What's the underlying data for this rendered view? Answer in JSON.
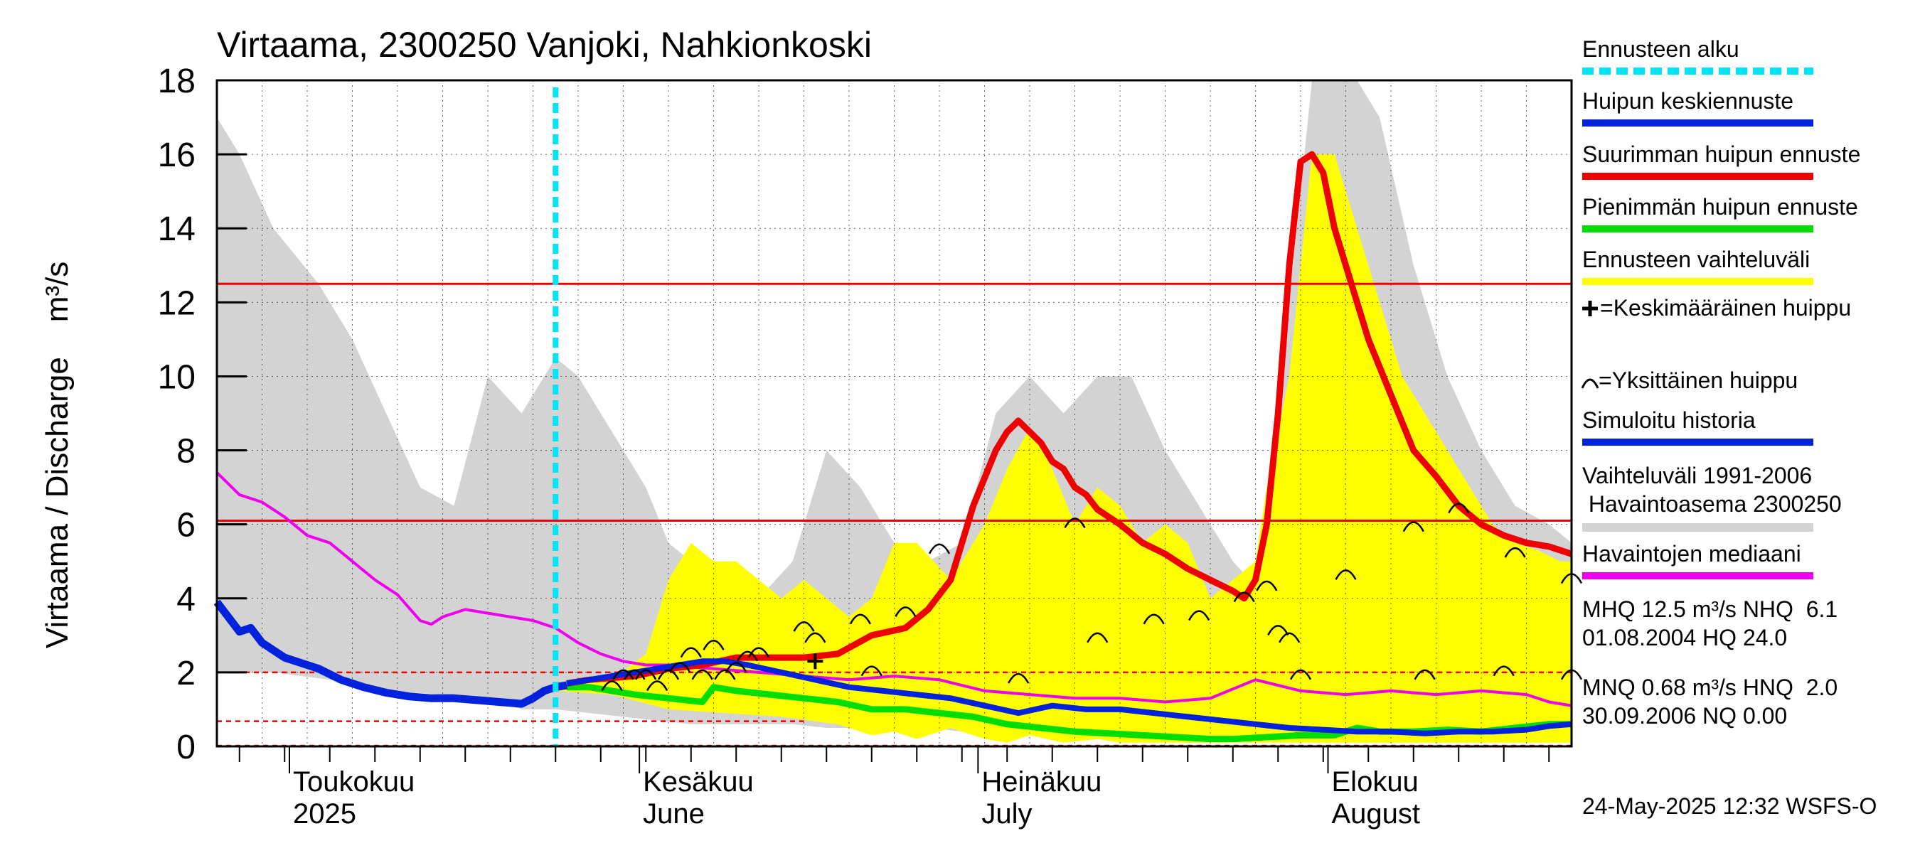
{
  "chart_data": {
    "type": "line",
    "title": "Virtaama, 2300250 Vanjoki, Nahkionkoski",
    "ylabel": "Virtaama / Discharge    m³/s",
    "ylim": [
      0,
      18
    ],
    "y_ticks": [
      "0",
      "2",
      "4",
      "6",
      "8",
      "10",
      "12",
      "14",
      "16",
      "18"
    ],
    "x_range_days": [
      0,
      120
    ],
    "x_month_labels": [
      {
        "fi": "Toukokuu",
        "en": "2025",
        "day": 8
      },
      {
        "fi": "Kesäkuu",
        "en": "June",
        "day": 39
      },
      {
        "fi": "Heinäkuu",
        "en": "July",
        "day": 69
      },
      {
        "fi": "Elokuu",
        "en": "August",
        "day": 100
      }
    ],
    "forecast_start_day": 30,
    "reference_lines": {
      "MHQ": 12.5,
      "NHQ": 6.1,
      "MNQ": 0.68,
      "HNQ": 2.0,
      "NQ": 0.0
    },
    "legend": [
      {
        "label": "Ennusteen alku",
        "color": "#00e5f5",
        "style": "dashed"
      },
      {
        "label": "Huipun keskiennuste",
        "color": "#0022dd",
        "style": "solid"
      },
      {
        "label": "Suurimman huipun ennuste",
        "color": "#ee0000",
        "style": "solid"
      },
      {
        "label": "Pienimmän huipun ennuste",
        "color": "#00dd00",
        "style": "solid"
      },
      {
        "label": "Ennusteen vaihteluväli",
        "color": "#ffff00",
        "style": "solid"
      },
      {
        "label": "=Keskimääräinen huippu",
        "color": "#000000",
        "style": "plus"
      },
      {
        "label": "=Yksittäinen huippu",
        "color": "#000000",
        "style": "arc"
      },
      {
        "label": "Simuloitu historia",
        "color": "#0022dd",
        "style": "solid"
      },
      {
        "label": "Vaihteluväli 1991-2006\n Havaintoasema 2300250",
        "color": "#d3d3d3",
        "style": "solid"
      },
      {
        "label": "Havaintojen mediaani",
        "color": "#ee00ee",
        "style": "solid"
      }
    ],
    "stats_text": {
      "line1": "MHQ 12.5 m³/s NHQ  6.1",
      "line2": "01.08.2004 HQ 24.0",
      "line3": "MNQ 0.68 m³/s HNQ  2.0",
      "line4": "30.09.2006 NQ 0.00"
    },
    "footer": "24-May-2025 12:32 WSFS-O",
    "colors": {
      "gray_band": "#d3d3d3",
      "yellow_band": "#ffff00",
      "red": "#ee0000",
      "green": "#00dd00",
      "blue": "#0022dd",
      "magenta": "#ee00ee",
      "cyan": "#00e5f5"
    },
    "series": {
      "history_band_upper": {
        "x": [
          0,
          2,
          5,
          9,
          12,
          15,
          18,
          21,
          24,
          27,
          30,
          32,
          35,
          38,
          40,
          42,
          45,
          48,
          51,
          54,
          57,
          60,
          63,
          66,
          69,
          72,
          75,
          78,
          81,
          84,
          87,
          90,
          93,
          95,
          97,
          99,
          101,
          103,
          106,
          109,
          112,
          115,
          118,
          120
        ],
        "y": [
          17.0,
          16.0,
          14.0,
          12.5,
          11.0,
          9.0,
          7.0,
          6.5,
          10.0,
          9.0,
          10.5,
          10.0,
          8.5,
          7.0,
          5.5,
          5.0,
          4.5,
          4.0,
          5.0,
          8.0,
          7.0,
          5.5,
          5.0,
          5.5,
          9.0,
          10.0,
          9.0,
          10.0,
          10.0,
          8.0,
          6.5,
          5.0,
          4.0,
          12.0,
          18.0,
          18.0,
          18.0,
          17.0,
          13.0,
          10.0,
          8.0,
          6.5,
          6.0,
          5.5
        ]
      },
      "history_band_lower": {
        "x": [
          0,
          5,
          10,
          15,
          20,
          24,
          27,
          30,
          33,
          36,
          39,
          42,
          45,
          48,
          51,
          54,
          57,
          60,
          63,
          66,
          69,
          72,
          75,
          78,
          81,
          84,
          87,
          90,
          93,
          96,
          99,
          102,
          105,
          108,
          111,
          114,
          117,
          120
        ],
        "y": [
          2.0,
          2.0,
          1.8,
          1.5,
          1.4,
          1.3,
          1.0,
          1.0,
          0.9,
          0.8,
          0.7,
          0.6,
          0.6,
          0.6,
          0.6,
          0.5,
          0.5,
          0.5,
          0.5,
          0.4,
          0.4,
          0.3,
          0.3,
          0.3,
          0.3,
          0.3,
          0.3,
          0.3,
          0.3,
          0.3,
          0.3,
          0.3,
          0.3,
          0.3,
          0.3,
          0.3,
          0.3,
          0.3
        ]
      },
      "forecast_band_upper": {
        "x": [
          30,
          32,
          35,
          38,
          40,
          42,
          44,
          46,
          48,
          50,
          52,
          54,
          56,
          58,
          60,
          62,
          65,
          68,
          70,
          72,
          74,
          76,
          78,
          80,
          82,
          84,
          86,
          88,
          90,
          92,
          93,
          95,
          97,
          99,
          101,
          103,
          105,
          107,
          109,
          111,
          113,
          115,
          117,
          119,
          120
        ],
        "y": [
          1.6,
          1.7,
          1.8,
          2.5,
          4.5,
          5.5,
          5.0,
          5.0,
          4.5,
          4.0,
          4.5,
          4.0,
          3.5,
          4.0,
          5.5,
          5.5,
          4.5,
          6.0,
          7.5,
          8.6,
          7.5,
          6.0,
          7.0,
          6.5,
          5.5,
          6.0,
          5.5,
          4.0,
          4.5,
          5.0,
          7.0,
          10.0,
          16.0,
          16.0,
          14.0,
          12.0,
          10.0,
          9.0,
          8.0,
          7.0,
          6.0,
          5.5,
          5.3,
          5.0,
          5.0
        ]
      },
      "forecast_band_lower": {
        "x": [
          30,
          35,
          40,
          45,
          50,
          55,
          58,
          60,
          62,
          65,
          68,
          70,
          72,
          75,
          78,
          80,
          82,
          85,
          88,
          91,
          94,
          97,
          100,
          103,
          106,
          109,
          112,
          115,
          118,
          120
        ],
        "y": [
          1.5,
          1.4,
          1.0,
          0.9,
          0.8,
          0.6,
          0.3,
          0.4,
          0.2,
          0.5,
          0.2,
          0.1,
          0.3,
          0.1,
          0.2,
          0.1,
          0.1,
          0.1,
          0.1,
          0.1,
          0.1,
          0.1,
          0.1,
          0.1,
          0.1,
          0.1,
          0.1,
          0.1,
          0.1,
          0.1
        ]
      },
      "max_peak_forecast": {
        "x": [
          31,
          33,
          35,
          37,
          40,
          43,
          46,
          49,
          52,
          55,
          58,
          61,
          63,
          65,
          67,
          69,
          70,
          71,
          72,
          73,
          74,
          75,
          76,
          77,
          78,
          80,
          82,
          84,
          86,
          88,
          90,
          91,
          92,
          93,
          94,
          95,
          96,
          97,
          98,
          99,
          100,
          102,
          104,
          106,
          108,
          110,
          112,
          114,
          116,
          118,
          120
        ],
        "y": [
          1.7,
          1.8,
          1.85,
          1.9,
          2.1,
          2.2,
          2.4,
          2.4,
          2.4,
          2.5,
          3.0,
          3.2,
          3.7,
          4.5,
          6.5,
          8.0,
          8.5,
          8.8,
          8.5,
          8.2,
          7.7,
          7.5,
          7.0,
          6.8,
          6.4,
          6.0,
          5.5,
          5.2,
          4.8,
          4.5,
          4.2,
          4.0,
          4.5,
          6.0,
          9.0,
          13.0,
          15.8,
          16.0,
          15.5,
          14.0,
          13.0,
          11.0,
          9.5,
          8.0,
          7.3,
          6.5,
          6.0,
          5.7,
          5.5,
          5.4,
          5.2
        ]
      },
      "min_peak_forecast": {
        "x": [
          31,
          33,
          35,
          37,
          40,
          43,
          44,
          46,
          49,
          52,
          55,
          58,
          61,
          64,
          67,
          70,
          73,
          76,
          79,
          82,
          85,
          88,
          90,
          93,
          96,
          99,
          101,
          103,
          106,
          109,
          112,
          115,
          118,
          120
        ],
        "y": [
          1.6,
          1.6,
          1.5,
          1.4,
          1.3,
          1.2,
          1.6,
          1.5,
          1.4,
          1.3,
          1.2,
          1.0,
          1.0,
          0.9,
          0.8,
          0.6,
          0.5,
          0.4,
          0.35,
          0.3,
          0.25,
          0.2,
          0.2,
          0.25,
          0.3,
          0.3,
          0.5,
          0.4,
          0.4,
          0.45,
          0.4,
          0.5,
          0.6,
          0.6
        ]
      },
      "mean_peak_forecast": {
        "x": [
          31,
          33,
          35,
          37,
          39,
          41,
          43,
          45,
          47,
          50,
          53,
          56,
          59,
          62,
          65,
          68,
          71,
          74,
          77,
          80,
          83,
          86,
          89,
          92,
          95,
          98,
          101,
          104,
          107,
          110,
          113,
          116,
          118,
          120
        ],
        "y": [
          1.7,
          1.8,
          1.9,
          2.0,
          2.1,
          2.2,
          2.3,
          2.3,
          2.2,
          2.0,
          1.8,
          1.6,
          1.5,
          1.4,
          1.3,
          1.1,
          0.9,
          1.1,
          1.0,
          1.0,
          0.9,
          0.8,
          0.7,
          0.6,
          0.5,
          0.45,
          0.4,
          0.4,
          0.35,
          0.4,
          0.4,
          0.45,
          0.55,
          0.6
        ]
      },
      "simulated_history": {
        "x": [
          0,
          1,
          2,
          3,
          4,
          5,
          6,
          7,
          9,
          11,
          13,
          15,
          17,
          19,
          21,
          23,
          25,
          27,
          28,
          29,
          30,
          31
        ],
        "y": [
          3.9,
          3.5,
          3.1,
          3.2,
          2.8,
          2.6,
          2.4,
          2.3,
          2.1,
          1.8,
          1.6,
          1.45,
          1.35,
          1.3,
          1.3,
          1.25,
          1.2,
          1.15,
          1.3,
          1.5,
          1.6,
          1.65
        ]
      },
      "observed_median": {
        "x": [
          0,
          2,
          4,
          6,
          8,
          10,
          12,
          14,
          16,
          18,
          19,
          20,
          22,
          24,
          26,
          28,
          30,
          32,
          34,
          36,
          38,
          40,
          44,
          48,
          52,
          56,
          60,
          64,
          68,
          72,
          76,
          80,
          84,
          88,
          92,
          96,
          100,
          104,
          108,
          112,
          116,
          118,
          120
        ],
        "y": [
          7.4,
          6.8,
          6.6,
          6.2,
          5.7,
          5.5,
          5.0,
          4.5,
          4.1,
          3.4,
          3.3,
          3.5,
          3.7,
          3.6,
          3.5,
          3.4,
          3.2,
          2.8,
          2.5,
          2.3,
          2.2,
          2.2,
          2.1,
          2.0,
          1.9,
          1.8,
          1.9,
          1.8,
          1.5,
          1.4,
          1.3,
          1.3,
          1.2,
          1.3,
          1.8,
          1.5,
          1.4,
          1.5,
          1.4,
          1.5,
          1.4,
          1.2,
          1.1
        ]
      },
      "single_peaks": {
        "x": [
          35,
          36,
          37,
          38,
          39,
          40,
          41,
          42,
          43,
          44,
          45,
          46,
          47,
          48,
          52,
          53,
          57,
          58,
          61,
          64,
          71,
          76,
          78,
          83,
          87,
          91,
          93,
          94,
          95,
          96,
          100,
          106,
          107,
          110,
          114,
          115,
          120,
          120
        ],
        "y": [
          1.7,
          2.0,
          2.0,
          2.0,
          1.7,
          2.0,
          2.2,
          2.6,
          2.0,
          2.8,
          2.0,
          2.2,
          2.5,
          2.6,
          3.3,
          3.0,
          3.5,
          2.1,
          3.7,
          5.4,
          1.9,
          6.1,
          3.0,
          3.5,
          3.6,
          4.1,
          4.4,
          3.2,
          3.0,
          2.0,
          4.7,
          6.0,
          2.0,
          6.5,
          2.1,
          5.3,
          4.6,
          2.0
        ]
      },
      "mean_peak_marker": {
        "x": 53,
        "y": 2.3
      }
    }
  }
}
